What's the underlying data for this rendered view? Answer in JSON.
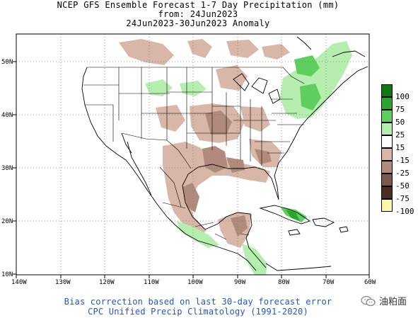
{
  "title": {
    "line1": "NCEP GFS Ensemble Forecast 1-7 Day Precipitation (mm)",
    "line2": "from: 24Jun2023",
    "line3": "24Jun2023-30Jun2023 Anomaly"
  },
  "axes": {
    "lon_labels": [
      "140W",
      "130W",
      "120W",
      "110W",
      "100W",
      "90W",
      "80W",
      "70W",
      "60W"
    ],
    "lat_labels": [
      "50N",
      "40N",
      "30N",
      "20N",
      "10N"
    ]
  },
  "legend": {
    "items": [
      {
        "label": "100",
        "color": "#0f7a0f"
      },
      {
        "label": "75",
        "color": "#2ea32e"
      },
      {
        "label": "50",
        "color": "#5fcd5f"
      },
      {
        "label": "25",
        "color": "#b6eeb0"
      },
      {
        "label": "15",
        "color": "#ffffff"
      },
      {
        "label": "-15",
        "color": "#d8b6a8"
      },
      {
        "label": "-25",
        "color": "#b08a7c"
      },
      {
        "label": "-50",
        "color": "#7a5a4e"
      },
      {
        "label": "-75",
        "color": "#4a2e24"
      },
      {
        "label": "-100",
        "color": "#fbf7a8"
      }
    ]
  },
  "footer": {
    "line1": "Bias correction based on last 30-day forecast error",
    "line2": "CPC Unified Precip Climatology (1991-2020)"
  },
  "watermark": {
    "text": "油粕面",
    "icon": "wechat-icon"
  },
  "colors": {
    "wet_light": "#b6eeb0",
    "wet_mid": "#5fcd5f",
    "wet_strong": "#2ea32e",
    "wet_max": "#0f7a0f",
    "dry_light": "#d8b6a8",
    "dry_mid": "#b08a7c",
    "dry_strong": "#7a5a4e",
    "footer_text": "#2255cc"
  }
}
